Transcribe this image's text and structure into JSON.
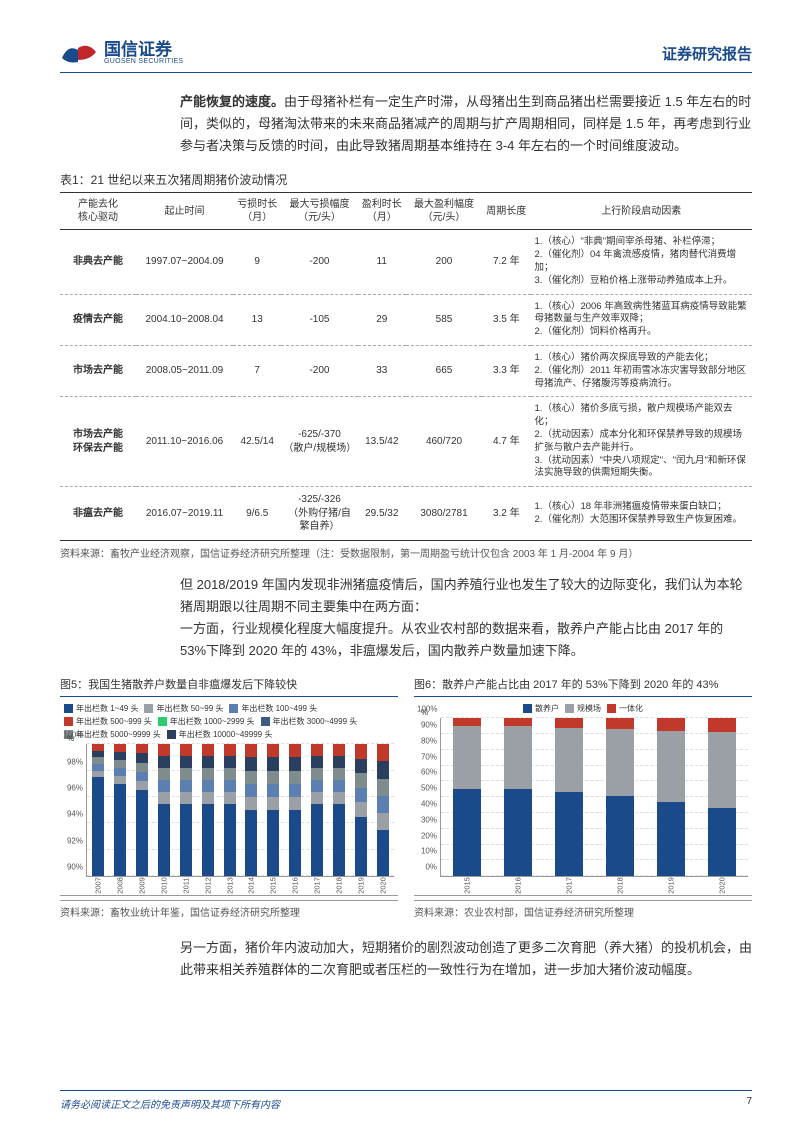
{
  "header": {
    "brand_cn": "国信证券",
    "brand_en": "GUOSEN SECURITIES",
    "report_type": "证券研究报告",
    "logo_colors": {
      "navy": "#1a4a8a",
      "red": "#c0272d"
    }
  },
  "para1": {
    "bold": "产能恢复的速度。",
    "rest": "由于母猪补栏有一定生产时滞，从母猪出生到商品猪出栏需要接近 1.5 年左右的时间，类似的，母猪淘汰带来的未来商品猪减产的周期与扩产周期相同，同样是 1.5 年，再考虑到行业参与者决策与反馈的时间，由此导致猪周期基本维持在 3-4 年左右的一个时间维度波动。"
  },
  "table1": {
    "title": "表1：21 世纪以来五次猪周期猪价波动情况",
    "columns": [
      "产能去化\n核心驱动",
      "起止时间",
      "亏损时长\n（月）",
      "最大亏损幅度\n（元/头）",
      "盈利时长\n（月）",
      "最大盈利幅度\n（元/头）",
      "周期长度",
      "上行阶段启动因素"
    ],
    "col_widths": [
      "11%",
      "14%",
      "7%",
      "11%",
      "7%",
      "11%",
      "7%",
      "32%"
    ],
    "rows": [
      {
        "driver": "非典去产能",
        "period": "1997.07~2004.09",
        "loss_mo": "9",
        "max_loss": "-200",
        "profit_mo": "11",
        "max_profit": "200",
        "cycle": "7.2 年",
        "factors": "1.（核心）\"非典\"期间宰杀母猪、补栏停滞；\n2.（催化剂）04 年禽流感疫情，猪肉替代消费增加；\n3.（催化剂）豆粕价格上涨带动养殖成本上升。"
      },
      {
        "driver": "疫情去产能",
        "period": "2004.10~2008.04",
        "loss_mo": "13",
        "max_loss": "-105",
        "profit_mo": "29",
        "max_profit": "585",
        "cycle": "3.5 年",
        "factors": "1.（核心）2006 年高致病性猪蓝耳病疫情导致能繁母猪数量与生产效率双降；\n2.（催化剂）饲料价格再升。"
      },
      {
        "driver": "市场去产能",
        "period": "2008.05~2011.09",
        "loss_mo": "7",
        "max_loss": "-200",
        "profit_mo": "33",
        "max_profit": "665",
        "cycle": "3.3 年",
        "factors": "1.（核心）猪价两次探底导致的产能去化；\n2.（催化剂）2011 年初雨雪冰冻灾害导致部分地区母猪流产、仔猪腹泻等疫病流行。"
      },
      {
        "driver": "市场去产能\n环保去产能",
        "period": "2011.10~2016.06",
        "loss_mo": "42.5/14",
        "max_loss": "-625/-370\n（散户/规模场）",
        "profit_mo": "13.5/42",
        "max_profit": "460/720",
        "cycle": "4.7 年",
        "factors": "1.（核心）猪价多底亏损，散户规模场产能双去化；\n2.（扰动因素）成本分化和环保禁养导致的规模场扩张与散户去产能并行。\n3.（扰动因素）\"中央八项规定\"、\"闰九月\"和新环保法实施导致的供需短期失衡。"
      },
      {
        "driver": "非瘟去产能",
        "period": "2016.07~2019.11",
        "loss_mo": "9/6.5",
        "max_loss": "-325/-326\n（外购仔猪/自\n繁自养）",
        "profit_mo": "29.5/32",
        "max_profit": "3080/2781",
        "cycle": "3.2 年",
        "factors": "1.（核心）18 年非洲猪瘟疫情带来蛋白缺口；\n2.（催化剂）大范围环保禁养导致生产恢复困难。"
      }
    ],
    "source": "资料来源：畜牧产业经济观察，国信证券经济研究所整理（注：受数据限制，第一周期盈亏统计仅包含 2003 年 1 月-2004 年 9 月）"
  },
  "para2": "但 2018/2019 年国内发现非洲猪瘟疫情后，国内养殖行业也发生了较大的边际变化，我们认为本轮猪周期跟以往周期不同主要集中在两方面：\n一方面，行业规模化程度大幅度提升。从农业农村部的数据来看，散养户产能占比由 2017 年的 53%下降到 2020 年的 43%，非瘟爆发后，国内散养户数量加速下降。",
  "fig5": {
    "title": "图5：我国生猪散养户数量自非瘟爆发后下降较快",
    "legend": [
      {
        "label": "年出栏数 1~49 头",
        "color": "#1a4a8a"
      },
      {
        "label": "年出栏数 50~99 头",
        "color": "#9aa0a6"
      },
      {
        "label": "年出栏数 100~499 头",
        "color": "#5a7fb0"
      },
      {
        "label": "年出栏数 500~999 头",
        "color": "#c0392b"
      },
      {
        "label": "年出栏数 1000~2999 头",
        "color": "#2ecc71"
      },
      {
        "label": "年出栏数 3000~4999 头",
        "color": "#3d5a80"
      },
      {
        "label": "年出栏数 5000~9999 头",
        "color": "#7f8c8d"
      },
      {
        "label": "年出栏数 10000~49999 头",
        "color": "#2a3f5f"
      }
    ],
    "ymin": 90,
    "ymax": 100,
    "ystep": 2,
    "ylabel": "%",
    "years": [
      "2007",
      "2008",
      "2009",
      "2010",
      "2011",
      "2012",
      "2013",
      "2014",
      "2015",
      "2016",
      "2017",
      "2018",
      "2019",
      "2020"
    ],
    "series_main": [
      97.5,
      97,
      96.5,
      95.5,
      95.5,
      95.5,
      95.5,
      95,
      95,
      95,
      95.5,
      95.5,
      94.5,
      93.5
    ],
    "top_cap": 100,
    "source": "资料来源：畜牧业统计年鉴，国信证券经济研究所整理"
  },
  "fig6": {
    "title": "图6：散养户产能占比由 2017 年的 53%下降到 2020 年的 43%",
    "legend": [
      {
        "label": "散养户",
        "color": "#1a4a8a"
      },
      {
        "label": "规模场",
        "color": "#9aa0a6"
      },
      {
        "label": "一体化",
        "color": "#c0392b"
      }
    ],
    "ymin": 0,
    "ymax": 100,
    "ystep": 10,
    "ylabel": "%",
    "years": [
      "2015",
      "2016",
      "2017",
      "2018",
      "2019",
      "2020"
    ],
    "stacks": [
      {
        "san": 55,
        "gui": 40,
        "yi": 5
      },
      {
        "san": 55,
        "gui": 40,
        "yi": 5
      },
      {
        "san": 53,
        "gui": 41,
        "yi": 6
      },
      {
        "san": 51,
        "gui": 42,
        "yi": 7
      },
      {
        "san": 47,
        "gui": 45,
        "yi": 8
      },
      {
        "san": 43,
        "gui": 48,
        "yi": 9
      }
    ],
    "source": "资料来源：农业农村部，国信证券经济研究所整理"
  },
  "para3": "另一方面，猪价年内波动加大，短期猪价的剧烈波动创造了更多二次育肥（养大猪）的投机机会，由此带来相关养殖群体的二次育肥或者压栏的一致性行为在增加，进一步加大猪价波动幅度。",
  "footer": {
    "disclaimer": "请务必阅读正文之后的免责声明及其项下所有内容",
    "page": "7"
  }
}
